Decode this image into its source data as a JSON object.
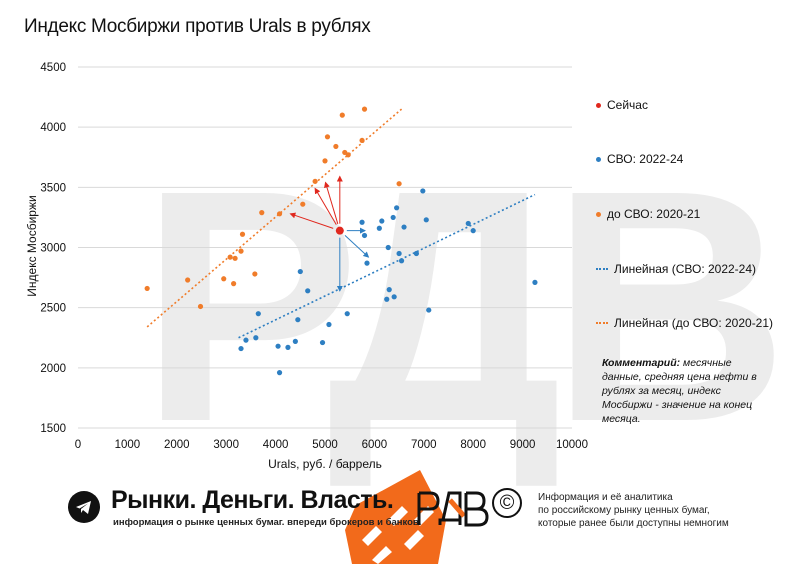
{
  "title": "Индекс Мосбиржи против Urals в рублях",
  "legend": {
    "now": "Сейчас",
    "svo": "СВО: 2022-24",
    "pre": "до СВО: 2020-21",
    "lin_svo": "Линейная (СВО: 2022-24)",
    "lin_pre": "Линейная (до СВО: 2020-21)"
  },
  "comment": {
    "bold": "Комментарий:",
    "text": " месячные данные, средняя цена нефти в рублях за месяц, индекс Мосбиржи - значение на конец месяца."
  },
  "footer": {
    "brand": "Рынки. Деньги. Власть.",
    "subtitle": "информация о рынке ценных бумаг. впереди брокеров и банков.",
    "logo": "РДВ",
    "copyright_symbol": "©",
    "info_lines": [
      "Информация и её аналитика",
      "по российскому рынку ценных бумаг,",
      "которые ранее были доступны немногим"
    ]
  },
  "colors": {
    "svo": "#2e7fc2",
    "pre": "#f07c2a",
    "now": "#e0281e",
    "grid": "#d9d9d9",
    "watermark": "#ececec"
  },
  "chart_data": {
    "type": "scatter",
    "title": "Индекс Мосбиржи против Urals в рублях",
    "xlabel": "Urals, руб. / баррель",
    "ylabel": "Индекс Мосбиржи",
    "xlim": [
      0,
      10000
    ],
    "ylim": [
      1500,
      4500
    ],
    "xticks": [
      0,
      1000,
      2000,
      3000,
      4000,
      5000,
      6000,
      7000,
      8000,
      9000,
      10000
    ],
    "yticks": [
      1500,
      2000,
      2500,
      3000,
      3500,
      4000,
      4500
    ],
    "grid": "horizontal",
    "legend_position": "right",
    "series": [
      {
        "name": "Сейчас",
        "color": "#e0281e",
        "points": [
          [
            5300,
            3140
          ]
        ]
      },
      {
        "name": "СВО: 2022-24",
        "color": "#2e7fc2",
        "points": [
          [
            3300,
            2160
          ],
          [
            3400,
            2230
          ],
          [
            3600,
            2250
          ],
          [
            3650,
            2450
          ],
          [
            4050,
            2180
          ],
          [
            4080,
            1960
          ],
          [
            4250,
            2170
          ],
          [
            4400,
            2220
          ],
          [
            4450,
            2400
          ],
          [
            4500,
            2800
          ],
          [
            4650,
            2640
          ],
          [
            4950,
            2210
          ],
          [
            5080,
            2360
          ],
          [
            5450,
            2450
          ],
          [
            5750,
            3210
          ],
          [
            5800,
            3100
          ],
          [
            5850,
            2870
          ],
          [
            6100,
            3160
          ],
          [
            6150,
            3220
          ],
          [
            6250,
            2570
          ],
          [
            6300,
            2650
          ],
          [
            6380,
            3250
          ],
          [
            6400,
            2590
          ],
          [
            6450,
            3330
          ],
          [
            6500,
            2950
          ],
          [
            6550,
            2890
          ],
          [
            6600,
            3170
          ],
          [
            6850,
            2950
          ],
          [
            6980,
            3470
          ],
          [
            7050,
            3230
          ],
          [
            7100,
            2480
          ],
          [
            7900,
            3200
          ],
          [
            8000,
            3140
          ],
          [
            9250,
            2710
          ],
          [
            6280,
            3000
          ]
        ]
      },
      {
        "name": "до СВО: 2020-21",
        "color": "#f07c2a",
        "points": [
          [
            1400,
            2660
          ],
          [
            2220,
            2730
          ],
          [
            2480,
            2510
          ],
          [
            2950,
            2740
          ],
          [
            3080,
            2920
          ],
          [
            3150,
            2700
          ],
          [
            3180,
            2910
          ],
          [
            3300,
            2970
          ],
          [
            3330,
            3110
          ],
          [
            3580,
            2780
          ],
          [
            3720,
            3290
          ],
          [
            4080,
            3280
          ],
          [
            4550,
            3360
          ],
          [
            4800,
            3550
          ],
          [
            5000,
            3720
          ],
          [
            5050,
            3920
          ],
          [
            5220,
            3840
          ],
          [
            5350,
            4100
          ],
          [
            5400,
            3790
          ],
          [
            5470,
            3770
          ],
          [
            5750,
            3890
          ],
          [
            5800,
            4150
          ],
          [
            6500,
            3530
          ]
        ]
      }
    ],
    "trendlines": [
      {
        "name": "Линейная (СВО: 2022-24)",
        "color": "#2e7fc2",
        "from": [
          3250,
          2250
        ],
        "to": [
          9250,
          3440
        ]
      },
      {
        "name": "Линейная (до СВО: 2020-21)",
        "color": "#f07c2a",
        "from": [
          1400,
          2340
        ],
        "to": [
          6550,
          4150
        ]
      }
    ],
    "arrows_from_now": [
      [
        5300,
        3590
      ],
      [
        5810,
        3140
      ],
      [
        5880,
        2920
      ],
      [
        5300,
        2640
      ],
      [
        4300,
        3280
      ],
      [
        4800,
        3490
      ],
      [
        5010,
        3540
      ]
    ]
  }
}
